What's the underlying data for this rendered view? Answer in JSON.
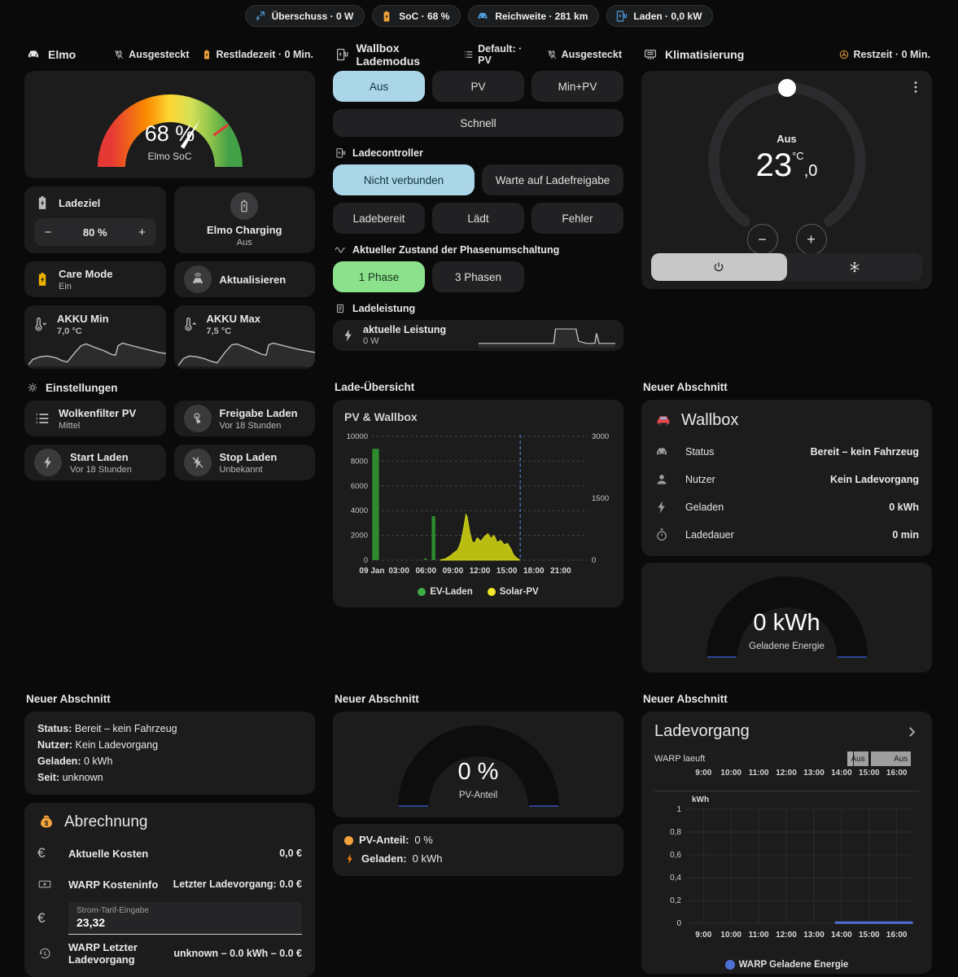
{
  "chips": [
    {
      "label": "Überschuss · 0 W",
      "color": "#4f9fe0"
    },
    {
      "label": "SoC · 68 %",
      "color": "#f2a33c"
    },
    {
      "label": "Reichweite · 281 km",
      "color": "#4f9fe0"
    },
    {
      "label": "Laden · 0,0 kW",
      "color": "#4f9fe0"
    }
  ],
  "left": {
    "title": "Elmo",
    "meta_plug": "Ausgesteckt",
    "meta_rest": "Restladezeit · 0 Min.",
    "soc_gauge": {
      "value": 68,
      "display": "68 %",
      "label": "Elmo SoC",
      "target": 80
    },
    "ladeziel": {
      "title": "Ladeziel",
      "value": "80 %",
      "minus": "−",
      "plus": "+"
    },
    "charging": {
      "title": "Elmo Charging",
      "state": "Aus"
    },
    "care": {
      "title": "Care Mode",
      "state": "Ein"
    },
    "refresh": {
      "title": "Aktualisieren"
    },
    "akku_min": {
      "title": "AKKU Min",
      "value": "7,0 °C",
      "spark": [
        [
          0,
          32
        ],
        [
          5,
          26
        ],
        [
          13,
          23
        ],
        [
          22,
          22
        ],
        [
          32,
          24
        ],
        [
          38,
          27
        ],
        [
          45,
          29
        ],
        [
          53,
          19
        ],
        [
          61,
          10
        ],
        [
          67,
          8
        ],
        [
          77,
          12
        ],
        [
          88,
          16
        ],
        [
          96,
          20
        ],
        [
          101,
          21
        ],
        [
          104,
          10
        ],
        [
          109,
          7
        ],
        [
          120,
          10
        ],
        [
          136,
          14
        ],
        [
          152,
          18
        ],
        [
          160,
          19
        ]
      ]
    },
    "akku_max": {
      "title": "AKKU Max",
      "value": "7,5 °C",
      "spark": [
        [
          0,
          33
        ],
        [
          6,
          25
        ],
        [
          13,
          22
        ],
        [
          22,
          23
        ],
        [
          30,
          25
        ],
        [
          38,
          28
        ],
        [
          45,
          30
        ],
        [
          54,
          18
        ],
        [
          62,
          9
        ],
        [
          68,
          8
        ],
        [
          78,
          12
        ],
        [
          88,
          16
        ],
        [
          97,
          20
        ],
        [
          102,
          21
        ],
        [
          105,
          9
        ],
        [
          110,
          7
        ],
        [
          122,
          10
        ],
        [
          138,
          14
        ],
        [
          154,
          17
        ],
        [
          160,
          18
        ]
      ]
    },
    "settings_title": "Einstellungen",
    "wolkenfilter": {
      "title": "Wolkenfilter PV",
      "state": "Mittel"
    },
    "freigabe": {
      "title": "Freigabe Laden",
      "state": "Vor 18 Stunden"
    },
    "start": {
      "title": "Start Laden",
      "state": "Vor 18 Stunden"
    },
    "stop": {
      "title": "Stop Laden",
      "state": "Unbekannt"
    }
  },
  "middle": {
    "title": "Wallbox Lademodus",
    "meta_default": "Default: · PV",
    "meta_plug": "Ausgesteckt",
    "modes": [
      {
        "label": "Aus",
        "selected": true
      },
      {
        "label": "PV",
        "selected": false
      },
      {
        "label": "Min+PV",
        "selected": false
      }
    ],
    "schnell": "Schnell",
    "controller_title": "Ladecontroller",
    "controller": [
      {
        "label": "Nicht verbunden",
        "selected": true
      },
      {
        "label": "Warte auf Ladefreigabe",
        "selected": false
      },
      {
        "label": "Ladebereit",
        "selected": false
      },
      {
        "label": "Lädt",
        "selected": false
      },
      {
        "label": "Fehler",
        "selected": false
      }
    ],
    "phase_title": "Aktueller Zustand der Phasenumschaltung",
    "phases": [
      {
        "label": "1 Phase",
        "selected": true
      },
      {
        "label": "3 Phasen",
        "selected": false
      }
    ],
    "leistung_title": "Ladeleistung",
    "leistung": {
      "title": "aktuelle Leistung",
      "value": "0 W",
      "spark": [
        [
          0,
          28
        ],
        [
          88,
          28
        ],
        [
          90,
          8
        ],
        [
          114,
          8
        ],
        [
          117,
          25
        ],
        [
          126,
          28
        ],
        [
          136,
          28
        ],
        [
          138,
          14
        ],
        [
          141,
          28
        ],
        [
          160,
          28
        ]
      ]
    },
    "uebersicht_title": "Lade-Übersicht"
  },
  "right": {
    "title": "Klimatisierung",
    "meta_rest": "Restzeit · 0 Min.",
    "thermostat": {
      "state": "Aus",
      "temp": "23",
      "frac": ",0",
      "unit": "°C",
      "minus": "−",
      "plus": "+"
    },
    "section_title": "Neuer Abschnitt",
    "wallbox": {
      "title": "Wallbox",
      "rows": [
        {
          "label": "Status",
          "value": "Bereit – kein Fahrzeug"
        },
        {
          "label": "Nutzer",
          "value": "Kein Ladevorgang"
        },
        {
          "label": "Geladen",
          "value": "0 kWh"
        },
        {
          "label": "Ladedauer",
          "value": "0 min"
        }
      ]
    },
    "energy_gauge": {
      "value": "0 kWh",
      "label": "Geladene Energie"
    }
  },
  "bottom_left": {
    "section_title": "Neuer Abschnitt",
    "markdown": [
      {
        "label": "Status:",
        "value": "Bereit – kein Fahrzeug"
      },
      {
        "label": "Nutzer:",
        "value": "Kein Ladevorgang"
      },
      {
        "label": "Geladen:",
        "value": "0 kWh"
      },
      {
        "label": "Seit:",
        "value": "unknown"
      }
    ],
    "abrechnung": {
      "title": "Abrechnung",
      "row1": {
        "label": "Aktuelle Kosten",
        "value": "0,0 €"
      },
      "row2": {
        "label": "WARP Kosteninfo",
        "value": "Letzter Ladevorgang: 0.0 €"
      },
      "tarif": {
        "label": "Strom-Tarif-Eingabe",
        "value": "23,32"
      },
      "row4": {
        "label": "WARP Letzter Ladevorgang",
        "value": "unknown – 0.0 kWh – 0.0 €"
      }
    }
  },
  "bottom_middle": {
    "section_title": "Neuer Abschnitt",
    "gauge": {
      "value": "0 %",
      "label": "PV-Anteil"
    },
    "info1": {
      "label": "PV-Anteil:",
      "value": "0 %"
    },
    "info2": {
      "label": "Geladen:",
      "value": "0 kWh"
    }
  },
  "bottom_right": {
    "section_title": "Neuer Abschnitt",
    "title": "Ladevorgang",
    "timeline_label": "WARP laeuft"
  },
  "chart_data": [
    {
      "id": "pv-wallbox",
      "type": "mixed-bar-area",
      "title": "PV & Wallbox",
      "x_unit": "hour of day (09 Jan)",
      "x_range": [
        0,
        24
      ],
      "x_ticks": [
        {
          "x": 0,
          "label": "09 Jan"
        },
        {
          "x": 3,
          "label": "03:00"
        },
        {
          "x": 6,
          "label": "06:00"
        },
        {
          "x": 9,
          "label": "09:00"
        },
        {
          "x": 12,
          "label": "12:00"
        },
        {
          "x": 15,
          "label": "15:00"
        },
        {
          "x": 18,
          "label": "18:00"
        },
        {
          "x": 21,
          "label": "21:00"
        }
      ],
      "y_left": {
        "max": 10000,
        "ticks": [
          0,
          2000,
          4000,
          6000,
          8000,
          10000
        ]
      },
      "y_right": {
        "max": 3000,
        "ticks": [
          0,
          1500,
          3000
        ]
      },
      "now_marker": {
        "x": 16.5,
        "color": "#4f83cc"
      },
      "series": [
        {
          "name": "EV-Laden",
          "type": "bar",
          "axis": "left",
          "color": "#2e8b2e",
          "legend_color": "#3fae47",
          "points": [
            [
              0.4,
              9000,
              0.75
            ],
            [
              5.95,
              150,
              0.22
            ],
            [
              6.85,
              3550,
              0.4
            ]
          ]
        },
        {
          "name": "Solar-PV",
          "type": "area",
          "axis": "left",
          "color": "#b9bd12",
          "legend_color": "#f0e62a",
          "points": [
            [
              7.6,
              20
            ],
            [
              8.2,
              120
            ],
            [
              8.8,
              400
            ],
            [
              9.2,
              650
            ],
            [
              9.5,
              800
            ],
            [
              9.7,
              1100
            ],
            [
              9.9,
              1500
            ],
            [
              10.1,
              2200
            ],
            [
              10.3,
              3000
            ],
            [
              10.45,
              3700
            ],
            [
              10.6,
              3500
            ],
            [
              10.75,
              2800
            ],
            [
              10.9,
              2200
            ],
            [
              11.1,
              1600
            ],
            [
              11.3,
              1350
            ],
            [
              11.5,
              1500
            ],
            [
              11.7,
              1800
            ],
            [
              11.9,
              1700
            ],
            [
              12.1,
              1500
            ],
            [
              12.3,
              1700
            ],
            [
              12.5,
              1900
            ],
            [
              12.7,
              2000
            ],
            [
              12.9,
              2150
            ],
            [
              13.1,
              1900
            ],
            [
              13.3,
              1750
            ],
            [
              13.5,
              2000
            ],
            [
              13.7,
              1850
            ],
            [
              13.9,
              1450
            ],
            [
              14.1,
              1500
            ],
            [
              14.3,
              1600
            ],
            [
              14.5,
              1450
            ],
            [
              14.7,
              1250
            ],
            [
              14.9,
              1300
            ],
            [
              15.1,
              1350
            ],
            [
              15.3,
              1100
            ],
            [
              15.5,
              850
            ],
            [
              15.7,
              500
            ],
            [
              15.9,
              300
            ],
            [
              16.1,
              180
            ],
            [
              16.3,
              80
            ],
            [
              16.5,
              0
            ]
          ]
        }
      ],
      "legend": [
        {
          "label": "EV-Laden"
        },
        {
          "label": "Solar-PV"
        }
      ]
    },
    {
      "id": "warp-energy",
      "type": "line",
      "ylabel": "kWh",
      "x_range": [
        8.4,
        16.6
      ],
      "x_ticks": [
        {
          "x": 9,
          "label": "9:00"
        },
        {
          "x": 10,
          "label": "10:00"
        },
        {
          "x": 11,
          "label": "11:00"
        },
        {
          "x": 12,
          "label": "12:00"
        },
        {
          "x": 13,
          "label": "13:00"
        },
        {
          "x": 14,
          "label": "14:00"
        },
        {
          "x": 15,
          "label": "15:00"
        },
        {
          "x": 16,
          "label": "16:00"
        }
      ],
      "y_ticks": [
        {
          "v": 0,
          "label": "0"
        },
        {
          "v": 0.2,
          "label": "0,2"
        },
        {
          "v": 0.4,
          "label": "0,4"
        },
        {
          "v": 0.6,
          "label": "0,6"
        },
        {
          "v": 0.8,
          "label": "0,8"
        },
        {
          "v": 1,
          "label": "1"
        }
      ],
      "series": [
        {
          "name": "WARP Geladene Energie",
          "color": "#4e6fd4",
          "points": [
            [
              13.8,
              0.005
            ],
            [
              16.55,
              0.005
            ]
          ]
        }
      ],
      "legend": [
        {
          "label": "WARP Geladene Energie",
          "color": "#4e6fd4"
        }
      ],
      "timeline": {
        "label": "WARP laeuft",
        "color": "#9e9e9e",
        "segments": [
          {
            "from": 14.2,
            "to": 14.45,
            "label": ""
          },
          {
            "from": 14.45,
            "to": 15.0,
            "label": "Aus"
          },
          {
            "from": 15.05,
            "to": 16.55,
            "label": "Aus"
          }
        ]
      }
    }
  ]
}
